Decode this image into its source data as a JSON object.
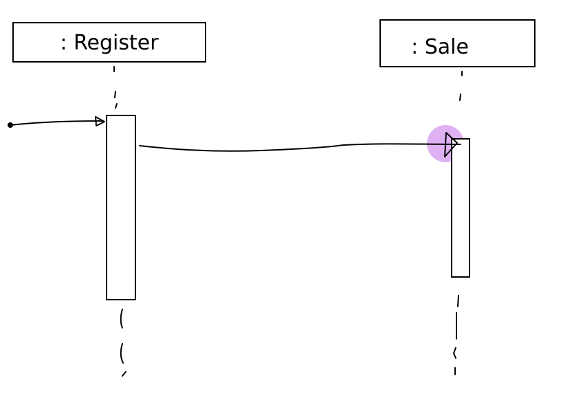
{
  "diagram": {
    "objects": [
      {
        "label": ": Register"
      },
      {
        "label": ": Sale"
      }
    ]
  },
  "colors": {
    "ink": "#000000",
    "highlight": "#d9a3f0"
  }
}
